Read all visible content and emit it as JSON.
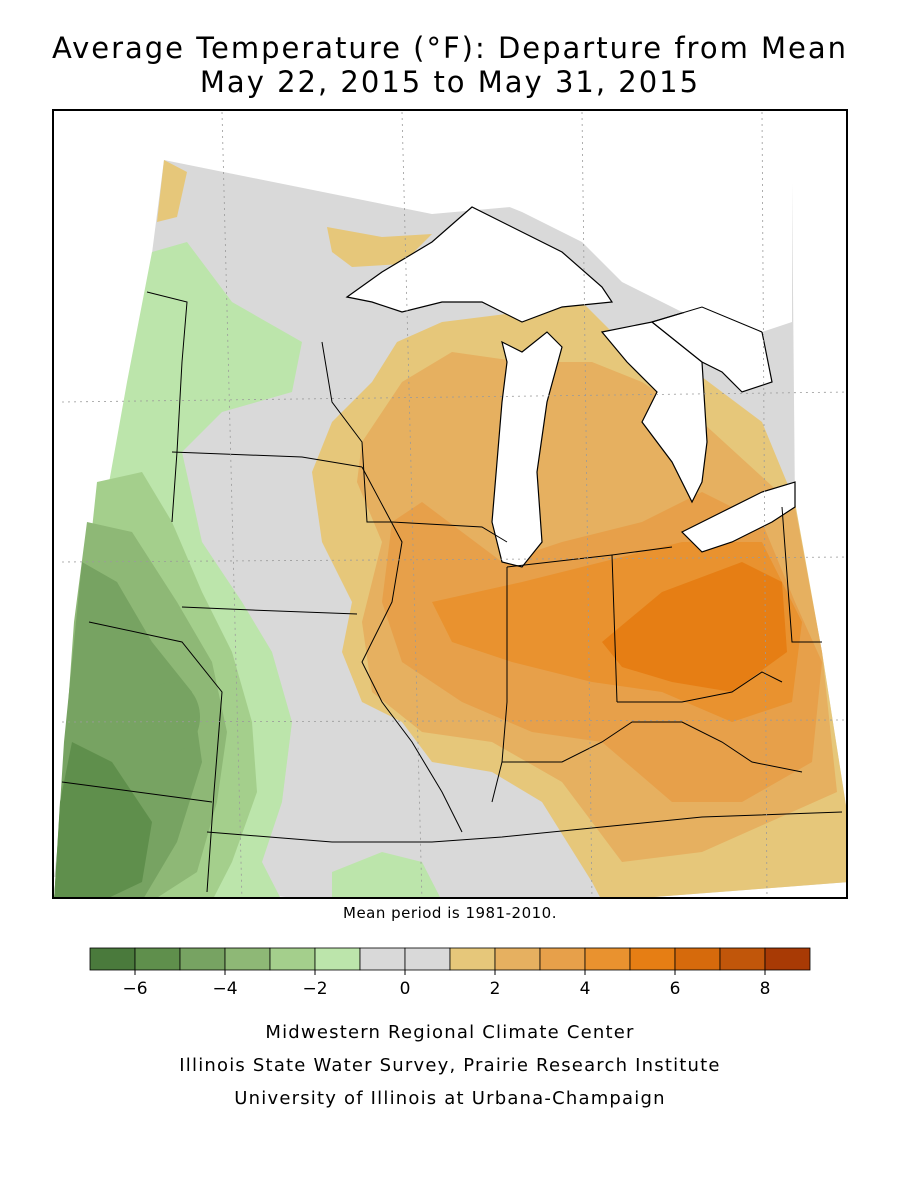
{
  "title": {
    "line1": "Average Temperature (°F): Departure from Mean",
    "line2": "May 22, 2015 to May 31, 2015"
  },
  "mean_period_note": "Mean period is 1981-2010.",
  "legend": {
    "colors": [
      "#4a7a3c",
      "#5f8f4c",
      "#77a362",
      "#8eb876",
      "#a4cf8c",
      "#bce5ab",
      "#d9d9d9",
      "#d9d9d9",
      "#e6c77a",
      "#e6b060",
      "#e7a04a",
      "#e9922f",
      "#e67e14",
      "#d66a0c",
      "#c1560a",
      "#a83a05"
    ],
    "ticks": [
      "−6",
      "−4",
      "−2",
      "0",
      "2",
      "4",
      "6",
      "8"
    ],
    "range": [
      -7,
      9
    ]
  },
  "colors": {
    "dg3": "#5f8f4c",
    "dg2": "#77a362",
    "dg1": "#8eb876",
    "g2": "#a4cf8c",
    "g1": "#bce5ab",
    "gray": "#d9d9d9",
    "y1": "#e6c77a",
    "o1": "#e6b060",
    "o2": "#e7a04a",
    "o3": "#e9922f",
    "o4": "#e67e14"
  },
  "credits": [
    "Midwestern Regional Climate Center",
    "Illinois State Water Survey, Prairie Research Institute",
    "University of Illinois at Urbana-Champaign"
  ]
}
